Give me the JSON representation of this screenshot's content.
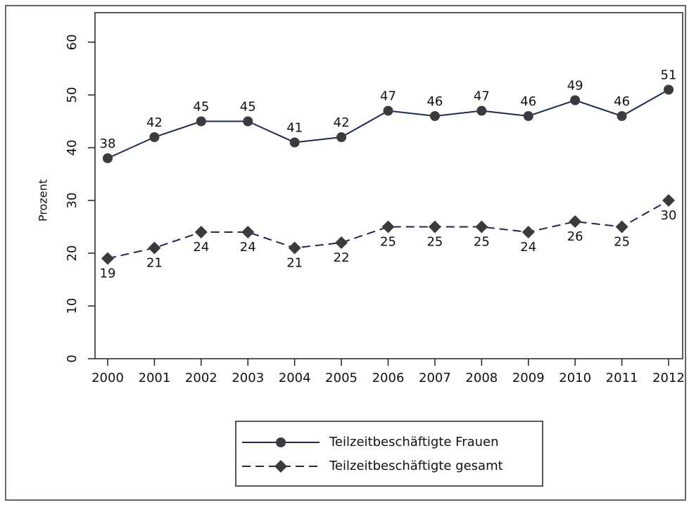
{
  "chart_data": {
    "type": "line",
    "y_label": "Prozent",
    "categories": [
      "2000",
      "2001",
      "2002",
      "2003",
      "2004",
      "2005",
      "2006",
      "2007",
      "2008",
      "2009",
      "2010",
      "2011",
      "2012"
    ],
    "series": [
      {
        "name": "Teilzeitbeschäftigte Frauen",
        "color": "#1b2a4e",
        "marker_color": "#3b3b3b",
        "marker": "circle",
        "dash": "solid",
        "label_side": "above",
        "values": [
          38,
          42,
          45,
          45,
          41,
          42,
          47,
          46,
          47,
          46,
          49,
          46,
          51
        ]
      },
      {
        "name": "Teilzeitbeschäftigte gesamt",
        "color": "#1b2a4e",
        "marker_color": "#3b3b3b",
        "marker": "diamond",
        "dash": "dashed",
        "label_side": "below",
        "values": [
          19,
          21,
          24,
          24,
          21,
          22,
          25,
          25,
          25,
          24,
          26,
          25,
          30
        ]
      }
    ],
    "ylim": [
      0,
      60
    ],
    "yticks": [
      0,
      10,
      20,
      30,
      40,
      50,
      60
    ],
    "grid": false,
    "legend": "bottom"
  }
}
